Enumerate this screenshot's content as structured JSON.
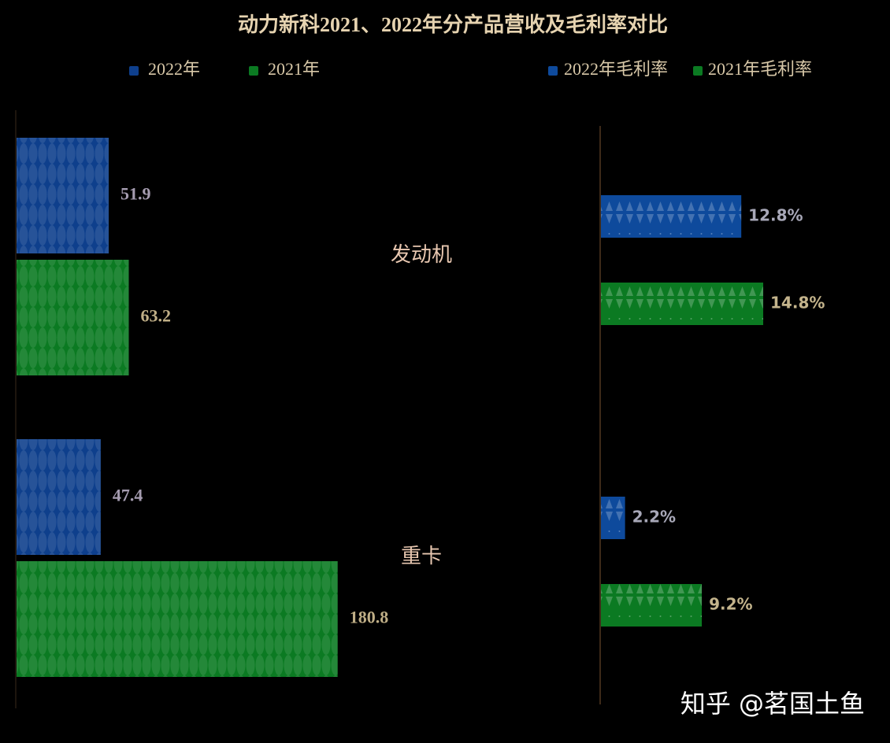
{
  "chart_data": [
    {
      "type": "bar",
      "title": "动力新科2021、2022年分产品营收及毛利率对比",
      "categories": [
        "发动机",
        "重卡"
      ],
      "series": [
        {
          "name": "2022年",
          "color": "#0e3f8c",
          "values": [
            51.9,
            47.4
          ]
        },
        {
          "name": "2021年",
          "color": "#0b7a22",
          "values": [
            63.2,
            180.8
          ]
        }
      ],
      "xlim": [
        0,
        200
      ]
    },
    {
      "type": "bar",
      "series": [
        {
          "name": "2022年毛利率",
          "color": "#0e4a9c",
          "values": [
            12.8,
            2.2
          ],
          "value_labels": [
            "12.8%",
            "2.2%"
          ]
        },
        {
          "name": "2021年毛利率",
          "color": "#0b7a22",
          "values": [
            14.8,
            9.2
          ],
          "value_labels": [
            "14.8%",
            "9.2%"
          ]
        }
      ],
      "xlim": [
        0,
        25
      ]
    }
  ],
  "watermark": "知乎 @茗国土鱼"
}
